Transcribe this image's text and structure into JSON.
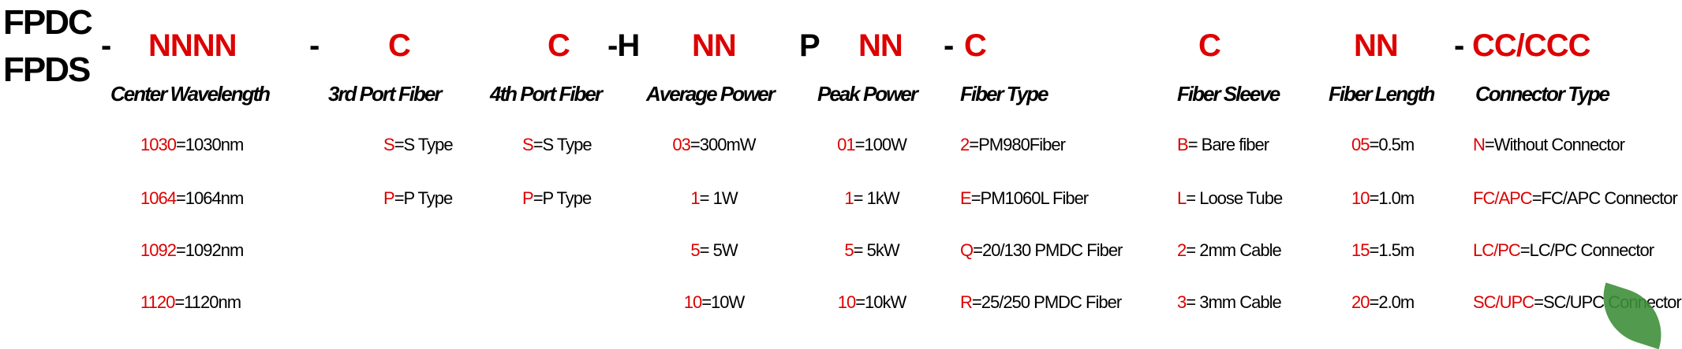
{
  "prefixes": [
    "FPDC",
    "FPDS"
  ],
  "code_parts": [
    {
      "text": "-",
      "color": "black"
    },
    {
      "text": "NNNN",
      "color": "red"
    },
    {
      "text": "-",
      "color": "black"
    },
    {
      "text": "C",
      "color": "red"
    },
    {
      "text": "C",
      "color": "red"
    },
    {
      "text": "-H",
      "color": "black"
    },
    {
      "text": "NN",
      "color": "red"
    },
    {
      "text": "P",
      "color": "black"
    },
    {
      "text": "NN",
      "color": "red"
    },
    {
      "text": "-",
      "color": "black"
    },
    {
      "text": "C",
      "color": "red"
    },
    {
      "text": "C",
      "color": "red"
    },
    {
      "text": "NN",
      "color": "red"
    },
    {
      "text": "-",
      "color": "black"
    },
    {
      "text": "CC/CCC",
      "color": "red"
    }
  ],
  "colors": {
    "code": "#dd0000",
    "text": "#000000",
    "leaf": "#3f8f3a"
  },
  "columns": [
    {
      "label": "Center Wavelength",
      "entries": [
        {
          "code": "1030",
          "desc": "=1030nm"
        },
        {
          "code": "1064",
          "desc": "=1064nm"
        },
        {
          "code": "1092",
          "desc": "=1092nm"
        },
        {
          "code": "1120",
          "desc": "=1120nm"
        }
      ]
    },
    {
      "label": "3rd Port Fiber",
      "entries": [
        {
          "code": "S",
          "desc": "=S Type"
        },
        {
          "code": "P",
          "desc": "=P Type"
        }
      ]
    },
    {
      "label": "4th Port Fiber",
      "entries": [
        {
          "code": "S",
          "desc": "=S Type"
        },
        {
          "code": "P",
          "desc": "=P Type"
        }
      ]
    },
    {
      "label": "Average Power",
      "entries": [
        {
          "code": "03",
          "desc": "=300mW"
        },
        {
          "code": "1",
          "desc": "= 1W"
        },
        {
          "code": "5",
          "desc": "= 5W"
        },
        {
          "code": "10",
          "desc": "=10W"
        }
      ]
    },
    {
      "label": "Peak Power",
      "entries": [
        {
          "code": "01",
          "desc": "=100W"
        },
        {
          "code": "1",
          "desc": "= 1kW"
        },
        {
          "code": "5",
          "desc": "= 5kW"
        },
        {
          "code": "10",
          "desc": "=10kW"
        }
      ]
    },
    {
      "label": "Fiber Type",
      "entries": [
        {
          "code": "2",
          "desc": "=PM980Fiber"
        },
        {
          "code": "E",
          "desc": "=PM1060L Fiber"
        },
        {
          "code": "Q",
          "desc": "=20/130 PMDC Fiber"
        },
        {
          "code": "R",
          "desc": "=25/250 PMDC Fiber"
        }
      ]
    },
    {
      "label": "Fiber Sleeve",
      "entries": [
        {
          "code": "B",
          "desc": "= Bare fiber"
        },
        {
          "code": "L",
          "desc": "= Loose Tube"
        },
        {
          "code": "2",
          "desc": "= 2mm Cable"
        },
        {
          "code": "3",
          "desc": "= 3mm Cable"
        }
      ]
    },
    {
      "label": "Fiber Length",
      "entries": [
        {
          "code": "05",
          "desc": "=0.5m"
        },
        {
          "code": "10",
          "desc": "=1.0m"
        },
        {
          "code": "15",
          "desc": "=1.5m"
        },
        {
          "code": "20",
          "desc": "=2.0m"
        }
      ]
    },
    {
      "label": "Connector Type",
      "entries": [
        {
          "code": "N",
          "desc": "=Without Connector"
        },
        {
          "code": "FC/APC",
          "desc": "=FC/APC Connector"
        },
        {
          "code": "LC/PC",
          "desc": "=LC/PC Connector"
        },
        {
          "code": "SC/UPC",
          "desc": "=SC/UPC Connector"
        }
      ]
    }
  ]
}
